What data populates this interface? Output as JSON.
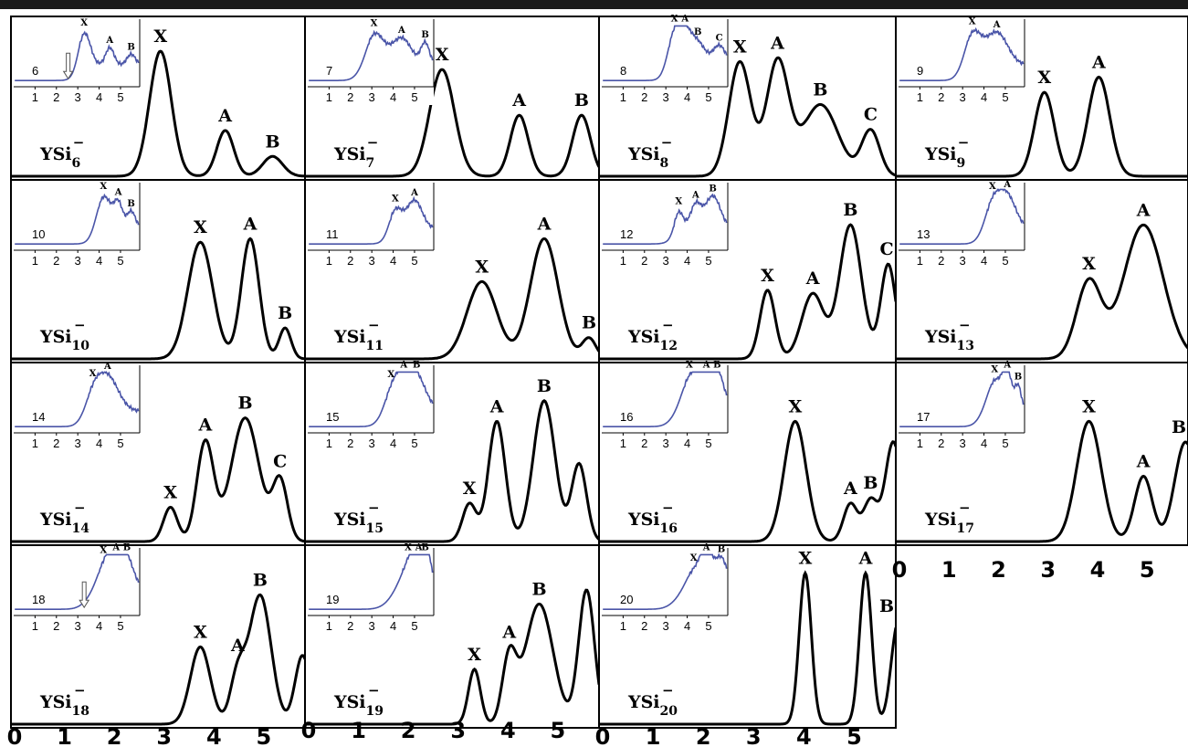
{
  "figure": {
    "x_ticks": [
      "0",
      "1",
      "2",
      "3",
      "4",
      "5"
    ]
  },
  "colors": {
    "main_curve": "#000000",
    "inset_curve": "#4a55a8",
    "frame": "#000000"
  },
  "chart_data": [
    {
      "type": "line",
      "cluster": "YSi",
      "size": "6",
      "charge": "−",
      "main": {
        "x_range": [
          0,
          5.9
        ],
        "peaks": [
          {
            "label": "X",
            "x": 3.0,
            "h": 0.82,
            "w": 0.22
          },
          {
            "label": "A",
            "x": 4.3,
            "h": 0.3,
            "w": 0.17
          },
          {
            "label": "B",
            "x": 5.25,
            "h": 0.13,
            "w": 0.2
          }
        ]
      },
      "inset": {
        "x_range": [
          0,
          5.9
        ],
        "baseline": 0.1,
        "ticks": [
          "1",
          "2",
          "3",
          "4",
          "5"
        ],
        "number": "6",
        "arrow_x": 2.55,
        "features": [
          {
            "label": "X",
            "x": 3.3,
            "h": 0.8,
            "w": 0.28
          },
          {
            "label": "A",
            "x": 4.5,
            "h": 0.4,
            "w": 0.2
          },
          {
            "label": "B",
            "x": 5.5,
            "h": 0.25,
            "w": 0.2
          }
        ]
      }
    },
    {
      "type": "line",
      "cluster": "YSi",
      "size": "7",
      "charge": "−",
      "main": {
        "x_range": [
          0,
          5.9
        ],
        "peaks": [
          {
            "label": "X",
            "x": 2.75,
            "h": 0.7,
            "w": 0.25
          },
          {
            "label": "A",
            "x": 4.3,
            "h": 0.4,
            "w": 0.18
          },
          {
            "label": "B",
            "x": 5.55,
            "h": 0.4,
            "w": 0.18
          }
        ]
      },
      "inset": {
        "x_range": [
          0,
          5.9
        ],
        "baseline": 0.1,
        "ticks": [
          "1",
          "2",
          "3",
          "4",
          "5"
        ],
        "number": "7",
        "features": [
          {
            "label": "X",
            "x": 3.1,
            "h": 0.78,
            "w": 0.45
          },
          {
            "label": "A",
            "x": 4.4,
            "h": 0.62,
            "w": 0.45
          },
          {
            "label": "B",
            "x": 5.5,
            "h": 0.5,
            "w": 0.2
          }
        ]
      }
    },
    {
      "type": "line",
      "cluster": "YSi",
      "size": "8",
      "charge": "−",
      "main": {
        "x_range": [
          0,
          5.9
        ],
        "peaks": [
          {
            "label": "X",
            "x": 2.8,
            "h": 0.75,
            "w": 0.22
          },
          {
            "label": "A",
            "x": 3.55,
            "h": 0.75,
            "w": 0.22
          },
          {
            "label": "B",
            "x": 4.4,
            "h": 0.47,
            "w": 0.35
          },
          {
            "label": "C",
            "x": 5.4,
            "h": 0.3,
            "w": 0.18
          }
        ]
      },
      "inset": {
        "x_range": [
          0,
          5.9
        ],
        "baseline": 0.1,
        "ticks": [
          "1",
          "2",
          "3",
          "4",
          "5"
        ],
        "number": "8",
        "features": [
          {
            "label": "X",
            "x": 3.4,
            "h": 0.78,
            "w": 0.32
          },
          {
            "label": "A",
            "x": 3.9,
            "h": 0.62,
            "w": 0.3
          },
          {
            "label": "B",
            "x": 4.5,
            "h": 0.5,
            "w": 0.35
          },
          {
            "label": "C",
            "x": 5.5,
            "h": 0.45,
            "w": 0.3
          }
        ]
      }
    },
    {
      "type": "line",
      "cluster": "YSi",
      "size": "9",
      "charge": "−",
      "main": {
        "x_range": [
          0,
          5.9
        ],
        "peaks": [
          {
            "label": "X",
            "x": 3.0,
            "h": 0.55,
            "w": 0.2
          },
          {
            "label": "A",
            "x": 4.1,
            "h": 0.65,
            "w": 0.22
          }
        ]
      },
      "inset": {
        "x_range": [
          0,
          5.9
        ],
        "baseline": 0.1,
        "ticks": [
          "1",
          "2",
          "3",
          "4",
          "5"
        ],
        "number": "9",
        "features": [
          {
            "label": "X",
            "x": 3.45,
            "h": 0.78,
            "w": 0.4
          },
          {
            "label": "A",
            "x": 4.6,
            "h": 0.75,
            "w": 0.5
          }
        ]
      }
    },
    {
      "type": "line",
      "cluster": "YSi",
      "size": "10",
      "charge": "−",
      "main": {
        "x_range": [
          0,
          5.9
        ],
        "peaks": [
          {
            "label": "X",
            "x": 3.8,
            "h": 0.68,
            "w": 0.25
          },
          {
            "label": "A",
            "x": 4.8,
            "h": 0.7,
            "w": 0.18
          },
          {
            "label": "B",
            "x": 5.5,
            "h": 0.18,
            "w": 0.12
          }
        ]
      },
      "inset": {
        "x_range": [
          0,
          5.9
        ],
        "baseline": 0.1,
        "ticks": [
          "1",
          "2",
          "3",
          "4",
          "5"
        ],
        "number": "10",
        "features": [
          {
            "label": "X",
            "x": 4.2,
            "h": 0.8,
            "w": 0.35
          },
          {
            "label": "A",
            "x": 4.9,
            "h": 0.55,
            "w": 0.2
          },
          {
            "label": "B",
            "x": 5.5,
            "h": 0.4,
            "w": 0.2
          }
        ]
      }
    },
    {
      "type": "line",
      "cluster": "YSi",
      "size": "11",
      "charge": "−",
      "main": {
        "x_range": [
          0,
          5.9
        ],
        "peaks": [
          {
            "label": "X",
            "x": 3.55,
            "h": 0.45,
            "w": 0.3
          },
          {
            "label": "A",
            "x": 4.8,
            "h": 0.7,
            "w": 0.28
          },
          {
            "label": "B",
            "x": 5.7,
            "h": 0.12,
            "w": 0.14
          }
        ]
      },
      "inset": {
        "x_range": [
          0,
          5.9
        ],
        "baseline": 0.1,
        "ticks": [
          "1",
          "2",
          "3",
          "4",
          "5"
        ],
        "number": "11",
        "features": [
          {
            "label": "X",
            "x": 4.1,
            "h": 0.5,
            "w": 0.3
          },
          {
            "label": "A",
            "x": 5.0,
            "h": 0.65,
            "w": 0.35
          }
        ]
      }
    },
    {
      "type": "line",
      "cluster": "YSi",
      "size": "12",
      "charge": "−",
      "main": {
        "x_range": [
          0,
          5.9
        ],
        "peaks": [
          {
            "label": "X",
            "x": 3.35,
            "h": 0.4,
            "w": 0.15
          },
          {
            "label": "A",
            "x": 4.25,
            "h": 0.38,
            "w": 0.22
          },
          {
            "label": "B",
            "x": 5.0,
            "h": 0.78,
            "w": 0.22
          },
          {
            "label": "C",
            "x": 5.75,
            "h": 0.55,
            "w": 0.15
          }
        ]
      },
      "inset": {
        "x_range": [
          0,
          5.9
        ],
        "baseline": 0.1,
        "ticks": [
          "1",
          "2",
          "3",
          "4",
          "5"
        ],
        "number": "12",
        "features": [
          {
            "label": "X",
            "x": 3.6,
            "h": 0.45,
            "w": 0.2
          },
          {
            "label": "A",
            "x": 4.4,
            "h": 0.55,
            "w": 0.25
          },
          {
            "label": "B",
            "x": 5.2,
            "h": 0.75,
            "w": 0.35
          }
        ]
      }
    },
    {
      "type": "line",
      "cluster": "YSi",
      "size": "13",
      "charge": "−",
      "main": {
        "x_range": [
          0,
          5.9
        ],
        "peaks": [
          {
            "label": "X",
            "x": 3.9,
            "h": 0.45,
            "w": 0.25
          },
          {
            "label": "A",
            "x": 5.0,
            "h": 0.78,
            "w": 0.4
          }
        ]
      },
      "inset": {
        "x_range": [
          0,
          5.9
        ],
        "baseline": 0.1,
        "ticks": [
          "1",
          "2",
          "3",
          "4",
          "5"
        ],
        "number": "13",
        "features": [
          {
            "label": "X",
            "x": 4.4,
            "h": 0.65,
            "w": 0.4
          },
          {
            "label": "A",
            "x": 5.1,
            "h": 0.7,
            "w": 0.4
          }
        ]
      }
    },
    {
      "type": "line",
      "cluster": "YSi",
      "size": "14",
      "charge": "−",
      "main": {
        "x_range": [
          0,
          5.9
        ],
        "peaks": [
          {
            "label": "X",
            "x": 3.2,
            "h": 0.2,
            "w": 0.14
          },
          {
            "label": "A",
            "x": 3.9,
            "h": 0.58,
            "w": 0.17
          },
          {
            "label": "B",
            "x": 4.7,
            "h": 0.72,
            "w": 0.28
          },
          {
            "label": "C",
            "x": 5.4,
            "h": 0.35,
            "w": 0.15
          }
        ]
      },
      "inset": {
        "x_range": [
          0,
          5.9
        ],
        "baseline": 0.1,
        "ticks": [
          "1",
          "2",
          "3",
          "4",
          "5"
        ],
        "number": "14",
        "features": [
          {
            "label": "X",
            "x": 3.7,
            "h": 0.4,
            "w": 0.4
          },
          {
            "label": "A",
            "x": 4.4,
            "h": 0.78,
            "w": 0.5
          }
        ]
      }
    },
    {
      "type": "line",
      "cluster": "YSi",
      "size": "15",
      "charge": "−",
      "main": {
        "x_range": [
          0,
          5.9
        ],
        "peaks": [
          {
            "label": "X",
            "x": 3.3,
            "h": 0.22,
            "w": 0.14
          },
          {
            "label": "A",
            "x": 3.85,
            "h": 0.7,
            "w": 0.17
          },
          {
            "label": "B",
            "x": 4.8,
            "h": 0.82,
            "w": 0.22
          },
          {
            "label": "",
            "x": 5.5,
            "h": 0.45,
            "w": 0.15
          }
        ]
      },
      "inset": {
        "x_range": [
          0,
          5.9
        ],
        "baseline": 0.1,
        "ticks": [
          "1",
          "2",
          "3",
          "4",
          "5"
        ],
        "number": "15",
        "features": [
          {
            "label": "X",
            "x": 3.9,
            "h": 0.45,
            "w": 0.4
          },
          {
            "label": "A",
            "x": 4.5,
            "h": 0.65,
            "w": 0.4
          },
          {
            "label": "B",
            "x": 5.1,
            "h": 0.72,
            "w": 0.45
          }
        ]
      }
    },
    {
      "type": "line",
      "cluster": "YSi",
      "size": "16",
      "charge": "−",
      "main": {
        "x_range": [
          0,
          5.9
        ],
        "peaks": [
          {
            "label": "X",
            "x": 3.9,
            "h": 0.7,
            "w": 0.22
          },
          {
            "label": "A",
            "x": 5.0,
            "h": 0.22,
            "w": 0.14
          },
          {
            "label": "B",
            "x": 5.4,
            "h": 0.24,
            "w": 0.14
          },
          {
            "label": "",
            "x": 5.85,
            "h": 0.58,
            "w": 0.16
          }
        ]
      },
      "inset": {
        "x_range": [
          0,
          5.9
        ],
        "baseline": 0.1,
        "ticks": [
          "1",
          "2",
          "3",
          "4",
          "5"
        ],
        "number": "16",
        "features": [
          {
            "label": "X",
            "x": 4.1,
            "h": 0.8,
            "w": 0.5
          },
          {
            "label": "A",
            "x": 4.9,
            "h": 0.72,
            "w": 0.4
          },
          {
            "label": "B",
            "x": 5.4,
            "h": 0.72,
            "w": 0.35
          }
        ]
      }
    },
    {
      "type": "line",
      "cluster": "YSi",
      "size": "17",
      "charge": "−",
      "main": {
        "x_range": [
          0,
          5.9
        ],
        "peaks": [
          {
            "label": "X",
            "x": 3.9,
            "h": 0.7,
            "w": 0.25
          },
          {
            "label": "A",
            "x": 5.0,
            "h": 0.38,
            "w": 0.18
          },
          {
            "label": "B",
            "x": 5.85,
            "h": 0.58,
            "w": 0.22
          }
        ]
      },
      "inset": {
        "x_range": [
          0,
          5.9
        ],
        "baseline": 0.1,
        "ticks": [
          "1",
          "2",
          "3",
          "4",
          "5"
        ],
        "number": "17",
        "features": [
          {
            "label": "X",
            "x": 4.5,
            "h": 0.78,
            "w": 0.45
          },
          {
            "label": "A",
            "x": 5.1,
            "h": 0.7,
            "w": 0.2
          },
          {
            "label": "B",
            "x": 5.6,
            "h": 0.55,
            "w": 0.15
          }
        ]
      }
    },
    {
      "type": "line",
      "cluster": "YSi",
      "size": "18",
      "charge": "−",
      "main": {
        "x_range": [
          0,
          5.9
        ],
        "peaks": [
          {
            "label": "X",
            "x": 3.8,
            "h": 0.45,
            "w": 0.2
          },
          {
            "label": "A",
            "x": 4.55,
            "h": 0.28,
            "w": 0.15
          },
          {
            "label": "B",
            "x": 5.0,
            "h": 0.75,
            "w": 0.22
          },
          {
            "label": "",
            "x": 5.85,
            "h": 0.4,
            "w": 0.15
          }
        ]
      },
      "inset": {
        "x_range": [
          0,
          5.9
        ],
        "baseline": 0.1,
        "ticks": [
          "1",
          "2",
          "3",
          "4",
          "5"
        ],
        "number": "18",
        "arrow_x": 3.3,
        "features": [
          {
            "label": "X",
            "x": 4.2,
            "h": 0.62,
            "w": 0.55
          },
          {
            "label": "A",
            "x": 4.8,
            "h": 0.62,
            "w": 0.4
          },
          {
            "label": "B",
            "x": 5.3,
            "h": 0.6,
            "w": 0.4
          }
        ]
      }
    },
    {
      "type": "line",
      "cluster": "YSi",
      "size": "19",
      "charge": "−",
      "main": {
        "x_range": [
          0,
          5.9
        ],
        "peaks": [
          {
            "label": "X",
            "x": 3.4,
            "h": 0.32,
            "w": 0.12
          },
          {
            "label": "A",
            "x": 4.1,
            "h": 0.38,
            "w": 0.14
          },
          {
            "label": "B",
            "x": 4.7,
            "h": 0.7,
            "w": 0.28
          },
          {
            "label": "",
            "x": 5.65,
            "h": 0.78,
            "w": 0.16
          }
        ]
      },
      "inset": {
        "x_range": [
          0,
          5.9
        ],
        "baseline": 0.1,
        "ticks": [
          "1",
          "2",
          "3",
          "4",
          "5"
        ],
        "number": "19",
        "features": [
          {
            "label": "X",
            "x": 4.7,
            "h": 0.72,
            "w": 0.6
          },
          {
            "label": "A",
            "x": 5.2,
            "h": 0.76,
            "w": 0.3
          },
          {
            "label": "B",
            "x": 5.5,
            "h": 0.76,
            "w": 0.25
          }
        ]
      }
    },
    {
      "type": "line",
      "cluster": "YSi",
      "size": "20",
      "charge": "−",
      "main": {
        "x_range": [
          0,
          5.9
        ],
        "peaks": [
          {
            "label": "X",
            "x": 4.1,
            "h": 0.88,
            "w": 0.12
          },
          {
            "label": "A",
            "x": 5.3,
            "h": 0.88,
            "w": 0.12
          },
          {
            "label": "B",
            "x": 5.95,
            "h": 0.6,
            "w": 0.14
          }
        ]
      },
      "inset": {
        "x_range": [
          0,
          5.9
        ],
        "baseline": 0.1,
        "ticks": [
          "1",
          "2",
          "3",
          "4",
          "5"
        ],
        "number": "20",
        "features": [
          {
            "label": "X",
            "x": 4.3,
            "h": 0.62,
            "w": 0.6
          },
          {
            "label": "A",
            "x": 4.9,
            "h": 0.72,
            "w": 0.25
          },
          {
            "label": "B",
            "x": 5.6,
            "h": 0.78,
            "w": 0.3
          }
        ]
      }
    }
  ]
}
